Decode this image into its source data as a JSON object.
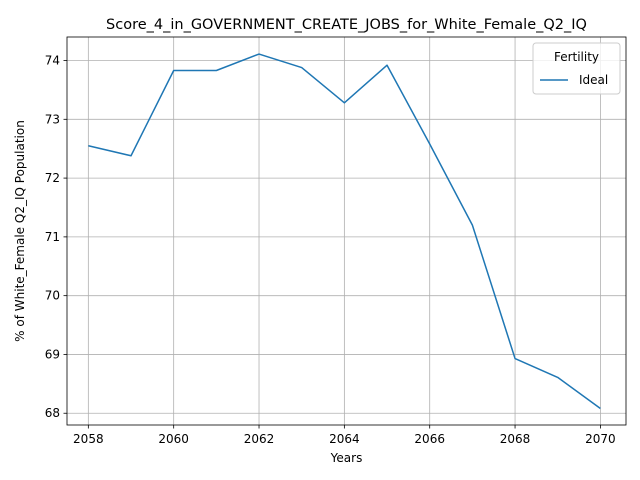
{
  "chart_data": {
    "type": "line",
    "title": "Score_4_in_GOVERNMENT_CREATE_JOBS_for_White_Female_Q2_IQ",
    "xlabel": "Years",
    "ylabel": "% of White_Female Q2_IQ Population",
    "xlim": [
      2057.5,
      2070.6
    ],
    "ylim": [
      67.8,
      74.4
    ],
    "xticks": [
      2058,
      2060,
      2062,
      2064,
      2066,
      2068,
      2070
    ],
    "yticks": [
      68,
      69,
      70,
      71,
      72,
      73,
      74
    ],
    "grid": true,
    "legend": {
      "title": "Fertility",
      "placement": "top-right"
    },
    "series": [
      {
        "name": "Ideal",
        "color": "#1f77b4",
        "x": [
          2058,
          2059,
          2060,
          2061,
          2062,
          2063,
          2064,
          2065,
          2066,
          2067,
          2068,
          2069,
          2070
        ],
        "y": [
          72.55,
          72.38,
          73.83,
          73.83,
          74.11,
          73.88,
          73.28,
          73.92,
          72.58,
          71.2,
          68.93,
          68.61,
          68.08
        ]
      }
    ]
  }
}
